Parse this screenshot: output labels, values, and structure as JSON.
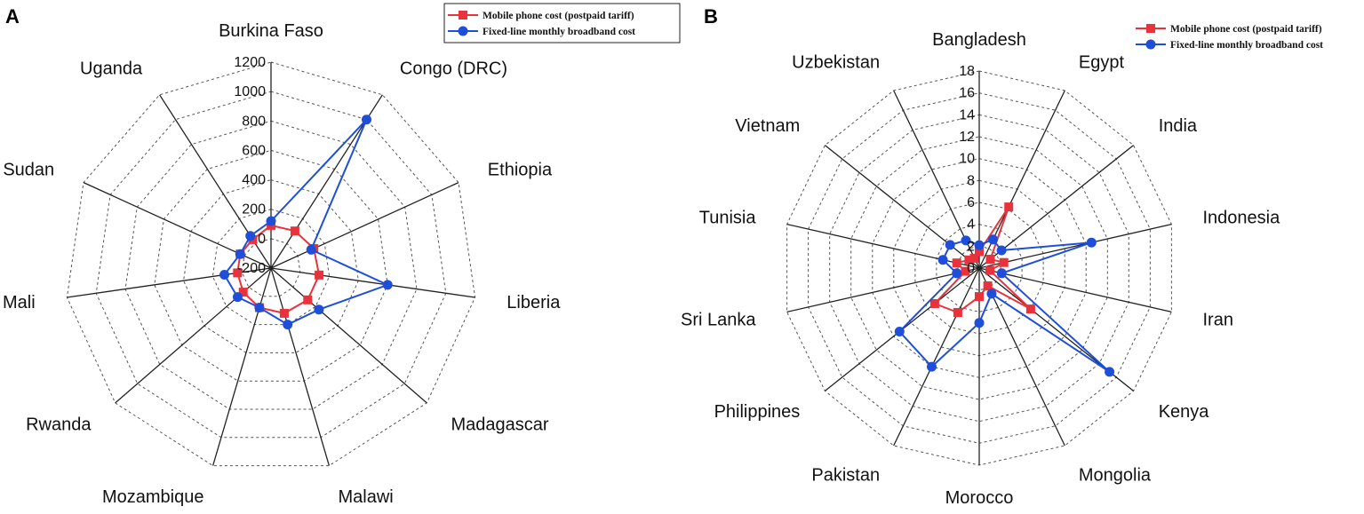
{
  "colors": {
    "mobile": "#e8323c",
    "broadband": "#1f4fd8",
    "grid": "#555555",
    "axis": "#222222"
  },
  "chart_data": [
    {
      "panel": "A",
      "type": "radar",
      "rmin": -200,
      "rmax": 1200,
      "ticks": [
        -200,
        0,
        200,
        400,
        600,
        800,
        1000,
        1200
      ],
      "tick_labels": [
        "-200",
        "0",
        "200",
        "400",
        "600",
        "800",
        "1000",
        "1200"
      ],
      "categories": [
        "Burkina Faso",
        "Congo (DRC)",
        "Ethiopia",
        "Liberia",
        "Madagascar",
        "Malawi",
        "Mozambique",
        "Rwanda",
        "Mali",
        "Sudan",
        "Uganda"
      ],
      "series": [
        {
          "name": "Mobile phone cost (postpaid tariff)",
          "values": [
            90,
            100,
            120,
            130,
            130,
            120,
            80,
            50,
            30,
            30,
            30
          ]
        },
        {
          "name": "Fixed-line monthly broadband cost",
          "values": [
            120,
            1000,
            100,
            600,
            230,
            200,
            80,
            100,
            120,
            30,
            60
          ]
        }
      ],
      "legend_position": "top-right"
    },
    {
      "panel": "B",
      "type": "radar",
      "rmin": 0,
      "rmax": 18,
      "ticks": [
        0,
        2,
        4,
        6,
        8,
        10,
        12,
        14,
        16,
        18
      ],
      "tick_labels": [
        "0",
        "2",
        "4",
        "6",
        "8",
        "10",
        "12",
        "14",
        "16",
        "18"
      ],
      "categories": [
        "Bangladesh",
        "Egypt",
        "India",
        "Indonesia",
        "Iran",
        "Kenya",
        "Mongolia",
        "Morocco",
        "Pakistan",
        "Philippines",
        "Sri Lanka",
        "Tunisia",
        "Vietnam",
        "Uzbekistan"
      ],
      "series": [
        {
          "name": "Mobile phone cost (postpaid tariff)",
          "values": [
            1.5,
            6.2,
            1.3,
            2.3,
            1.0,
            6.0,
            1.8,
            2.6,
            4.5,
            5.2,
            1.3,
            2.1,
            1.2,
            1.0
          ]
        },
        {
          "name": "Fixed-line monthly broadband cost",
          "values": [
            2.1,
            2.9,
            2.6,
            10.5,
            2.1,
            15.2,
            2.6,
            5.0,
            10.0,
            9.3,
            2.1,
            3.4,
            3.4,
            2.8
          ]
        }
      ],
      "legend_position": "top-right"
    }
  ]
}
